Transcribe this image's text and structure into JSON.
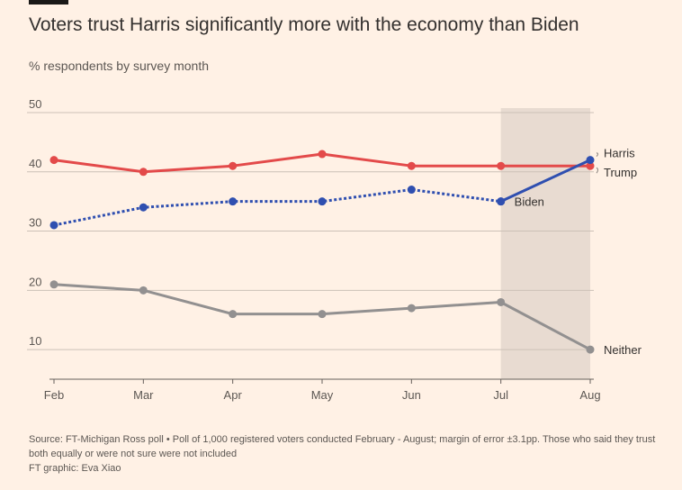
{
  "header": {
    "title": "Voters trust Harris significantly more with the economy than Biden",
    "subtitle": "% respondents by survey month"
  },
  "footer": {
    "source": "Source: FT-Michigan Ross poll • Poll of 1,000 registered voters conducted February - August; margin of error ±3.1pp. Those who said they trust both equally or were not sure were not included",
    "credit": "FT graphic: Eva Xiao"
  },
  "chart_data": {
    "type": "line",
    "categories": [
      "Feb",
      "Mar",
      "Apr",
      "May",
      "Jun",
      "Jul",
      "Aug"
    ],
    "ylim": [
      5,
      50
    ],
    "yticks": [
      10,
      20,
      30,
      40,
      50
    ],
    "grid": true,
    "highlight_range": [
      "Jul",
      "Aug"
    ],
    "series": [
      {
        "name": "Trump",
        "color": "#e34a4a",
        "style": "solid",
        "values": [
          42,
          40,
          41,
          43,
          41,
          41,
          41
        ]
      },
      {
        "name": "Biden",
        "color": "#2f4fb0",
        "style": "dotted",
        "values": [
          31,
          34,
          35,
          35,
          37,
          35,
          null
        ]
      },
      {
        "name": "Harris",
        "color": "#2f4fb0",
        "style": "solid",
        "values": [
          null,
          null,
          null,
          null,
          null,
          35,
          42
        ]
      },
      {
        "name": "Neither",
        "color": "#929090",
        "style": "solid",
        "values": [
          21,
          20,
          16,
          16,
          17,
          18,
          10
        ]
      }
    ]
  }
}
